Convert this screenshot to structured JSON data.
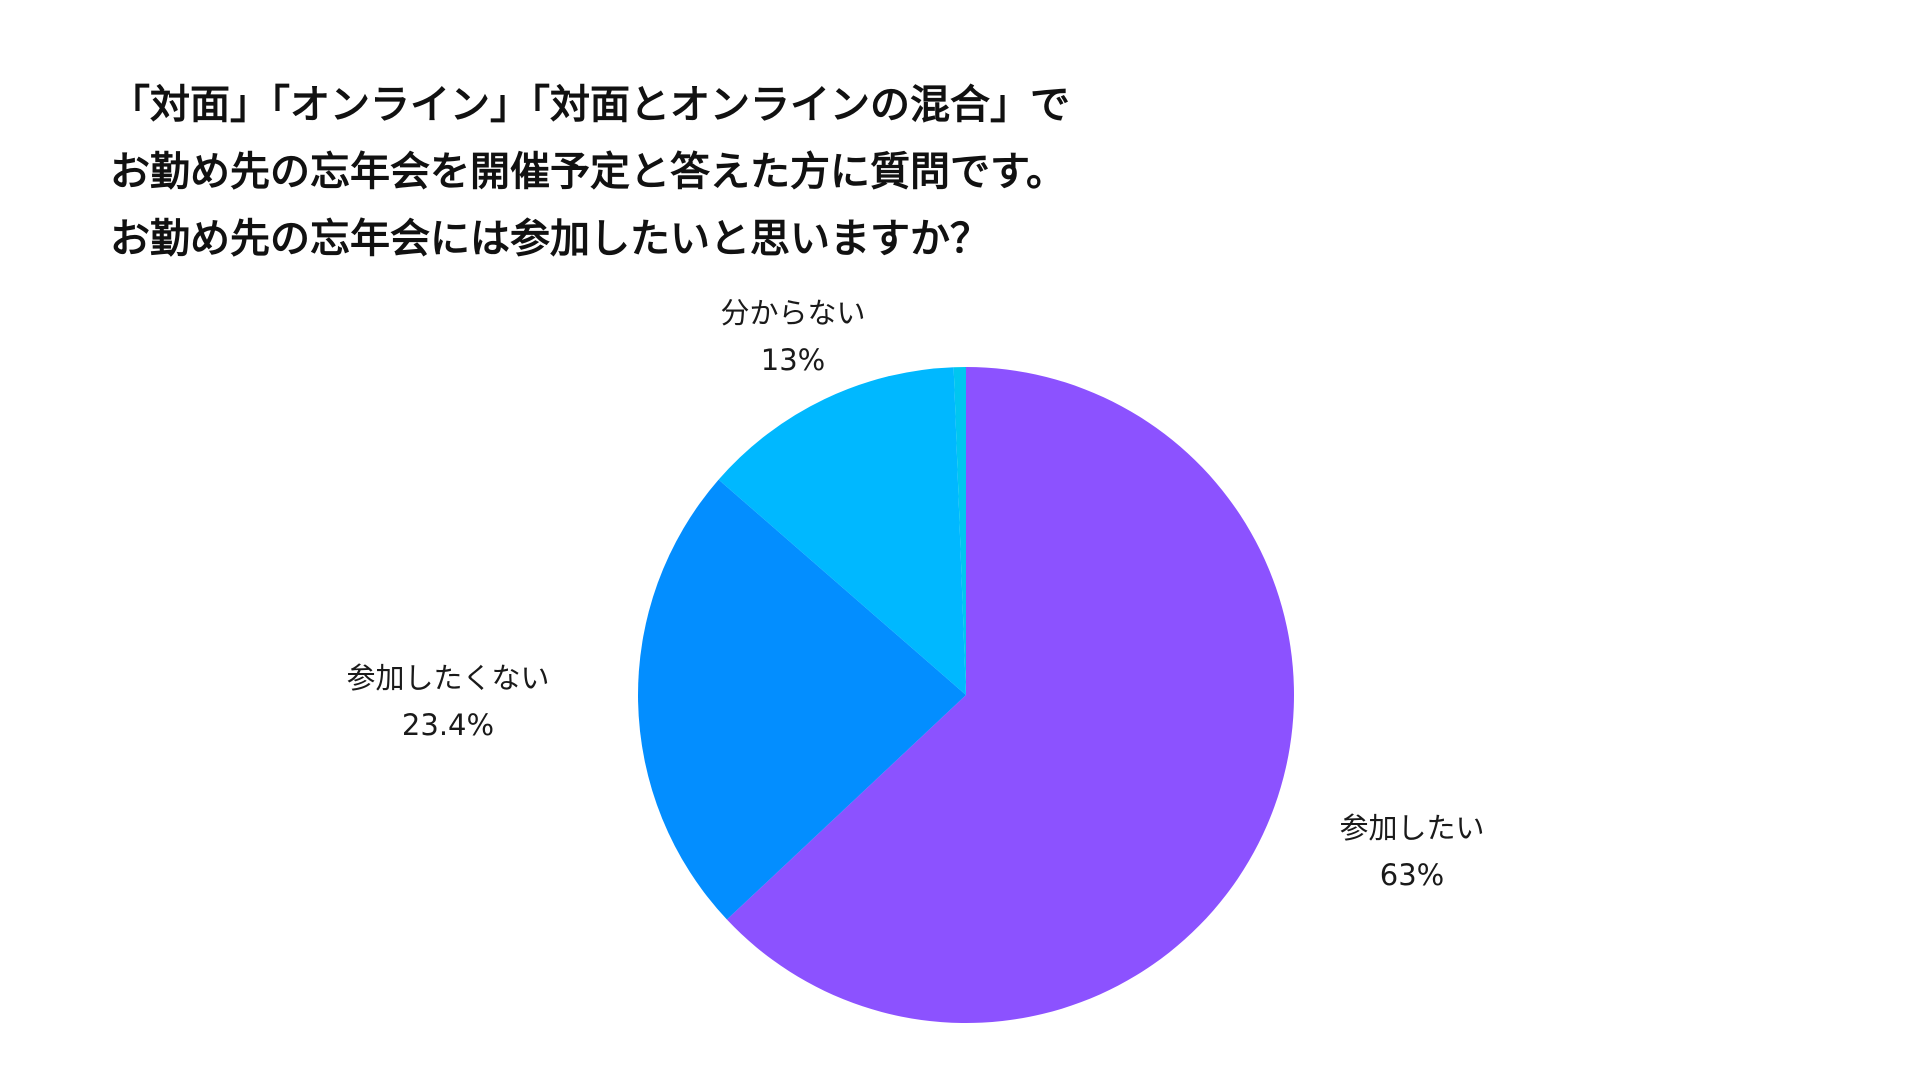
{
  "chart_data": {
    "type": "pie",
    "title_lines": [
      "「対面」「オンライン」「対面とオンラインの混合」で",
      "お勤め先の忘年会を開催予定と答えた方に質問です。",
      "お勤め先の忘年会には参加したいと思いますか？"
    ],
    "start_angle_deg": 0,
    "direction": "clockwise",
    "slices": [
      {
        "label": "参加したい",
        "value": 63,
        "value_label": "63%",
        "color": "#8c52ff"
      },
      {
        "label": "参加したくない",
        "value": 23.4,
        "value_label": "23.4%",
        "color": "#038eff"
      },
      {
        "label": "分からない",
        "value": 13,
        "value_label": "13%",
        "color": "#00b8ff"
      },
      {
        "label": "",
        "value": 0.6,
        "value_label": "",
        "color": "#00c6f0"
      }
    ]
  }
}
